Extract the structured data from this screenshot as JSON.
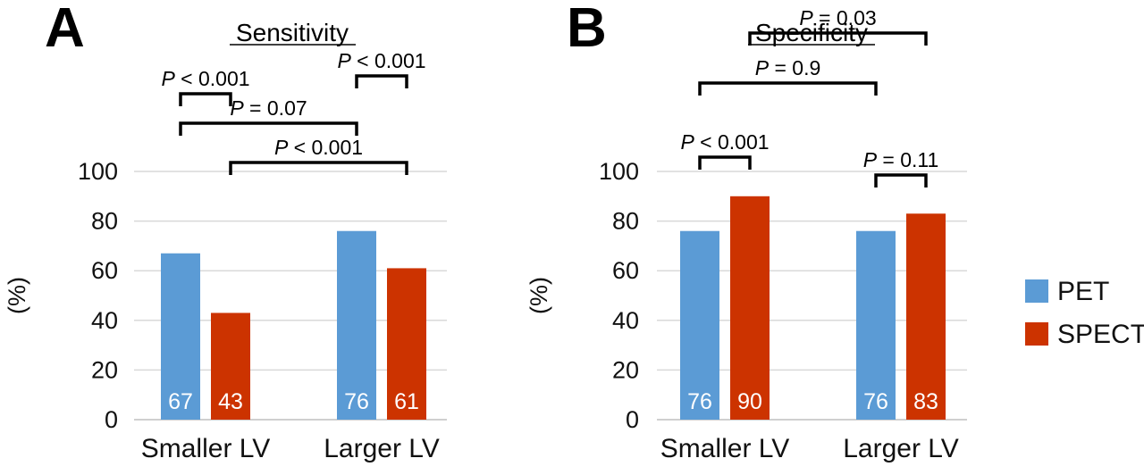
{
  "colors": {
    "PET": "#5b9bd5",
    "SPECT": "#cc3300"
  },
  "legend": [
    {
      "name": "PET",
      "color": "#5b9bd5"
    },
    {
      "name": "SPECT",
      "color": "#cc3300"
    }
  ],
  "chart_data": [
    {
      "type": "bar",
      "panel": "A",
      "title": "Sensitivity",
      "ylabel": "(%)",
      "ylim": [
        0,
        100
      ],
      "yticks": [
        0,
        20,
        40,
        60,
        80,
        100
      ],
      "categories": [
        "Smaller LV",
        "Larger LV"
      ],
      "series": [
        {
          "name": "PET",
          "values": [
            67,
            76
          ]
        },
        {
          "name": "SPECT",
          "values": [
            43,
            61
          ]
        }
      ],
      "comparisons": [
        {
          "label_italic": "P",
          "label_rest": " < 0.001",
          "from": "Smaller LV|PET",
          "to": "Smaller LV|SPECT"
        },
        {
          "label_italic": "P",
          "label_rest": " < 0.001",
          "from": "Larger LV|PET",
          "to": "Larger LV|SPECT"
        },
        {
          "label_italic": "P",
          "label_rest": " = 0.07",
          "from": "Smaller LV|PET",
          "to": "Larger LV|PET"
        },
        {
          "label_italic": "P",
          "label_rest": " < 0.001",
          "from": "Smaller LV|SPECT",
          "to": "Larger LV|SPECT"
        }
      ]
    },
    {
      "type": "bar",
      "panel": "B",
      "title": "Specificity",
      "ylabel": "(%)",
      "ylim": [
        0,
        100
      ],
      "yticks": [
        0,
        20,
        40,
        60,
        80,
        100
      ],
      "categories": [
        "Smaller LV",
        "Larger LV"
      ],
      "series": [
        {
          "name": "PET",
          "values": [
            76,
            76
          ]
        },
        {
          "name": "SPECT",
          "values": [
            90,
            83
          ]
        }
      ],
      "comparisons": [
        {
          "label_italic": "P",
          "label_rest": " < 0.001",
          "from": "Smaller LV|PET",
          "to": "Smaller LV|SPECT"
        },
        {
          "label_italic": "P",
          "label_rest": " = 0.11",
          "from": "Larger LV|PET",
          "to": "Larger LV|SPECT"
        },
        {
          "label_italic": "P",
          "label_rest": " = 0.9",
          "from": "Smaller LV|PET",
          "to": "Larger LV|PET"
        },
        {
          "label_italic": "P",
          "label_rest": " = 0.03",
          "from": "Smaller LV|SPECT",
          "to": "Larger LV|SPECT"
        }
      ]
    }
  ]
}
